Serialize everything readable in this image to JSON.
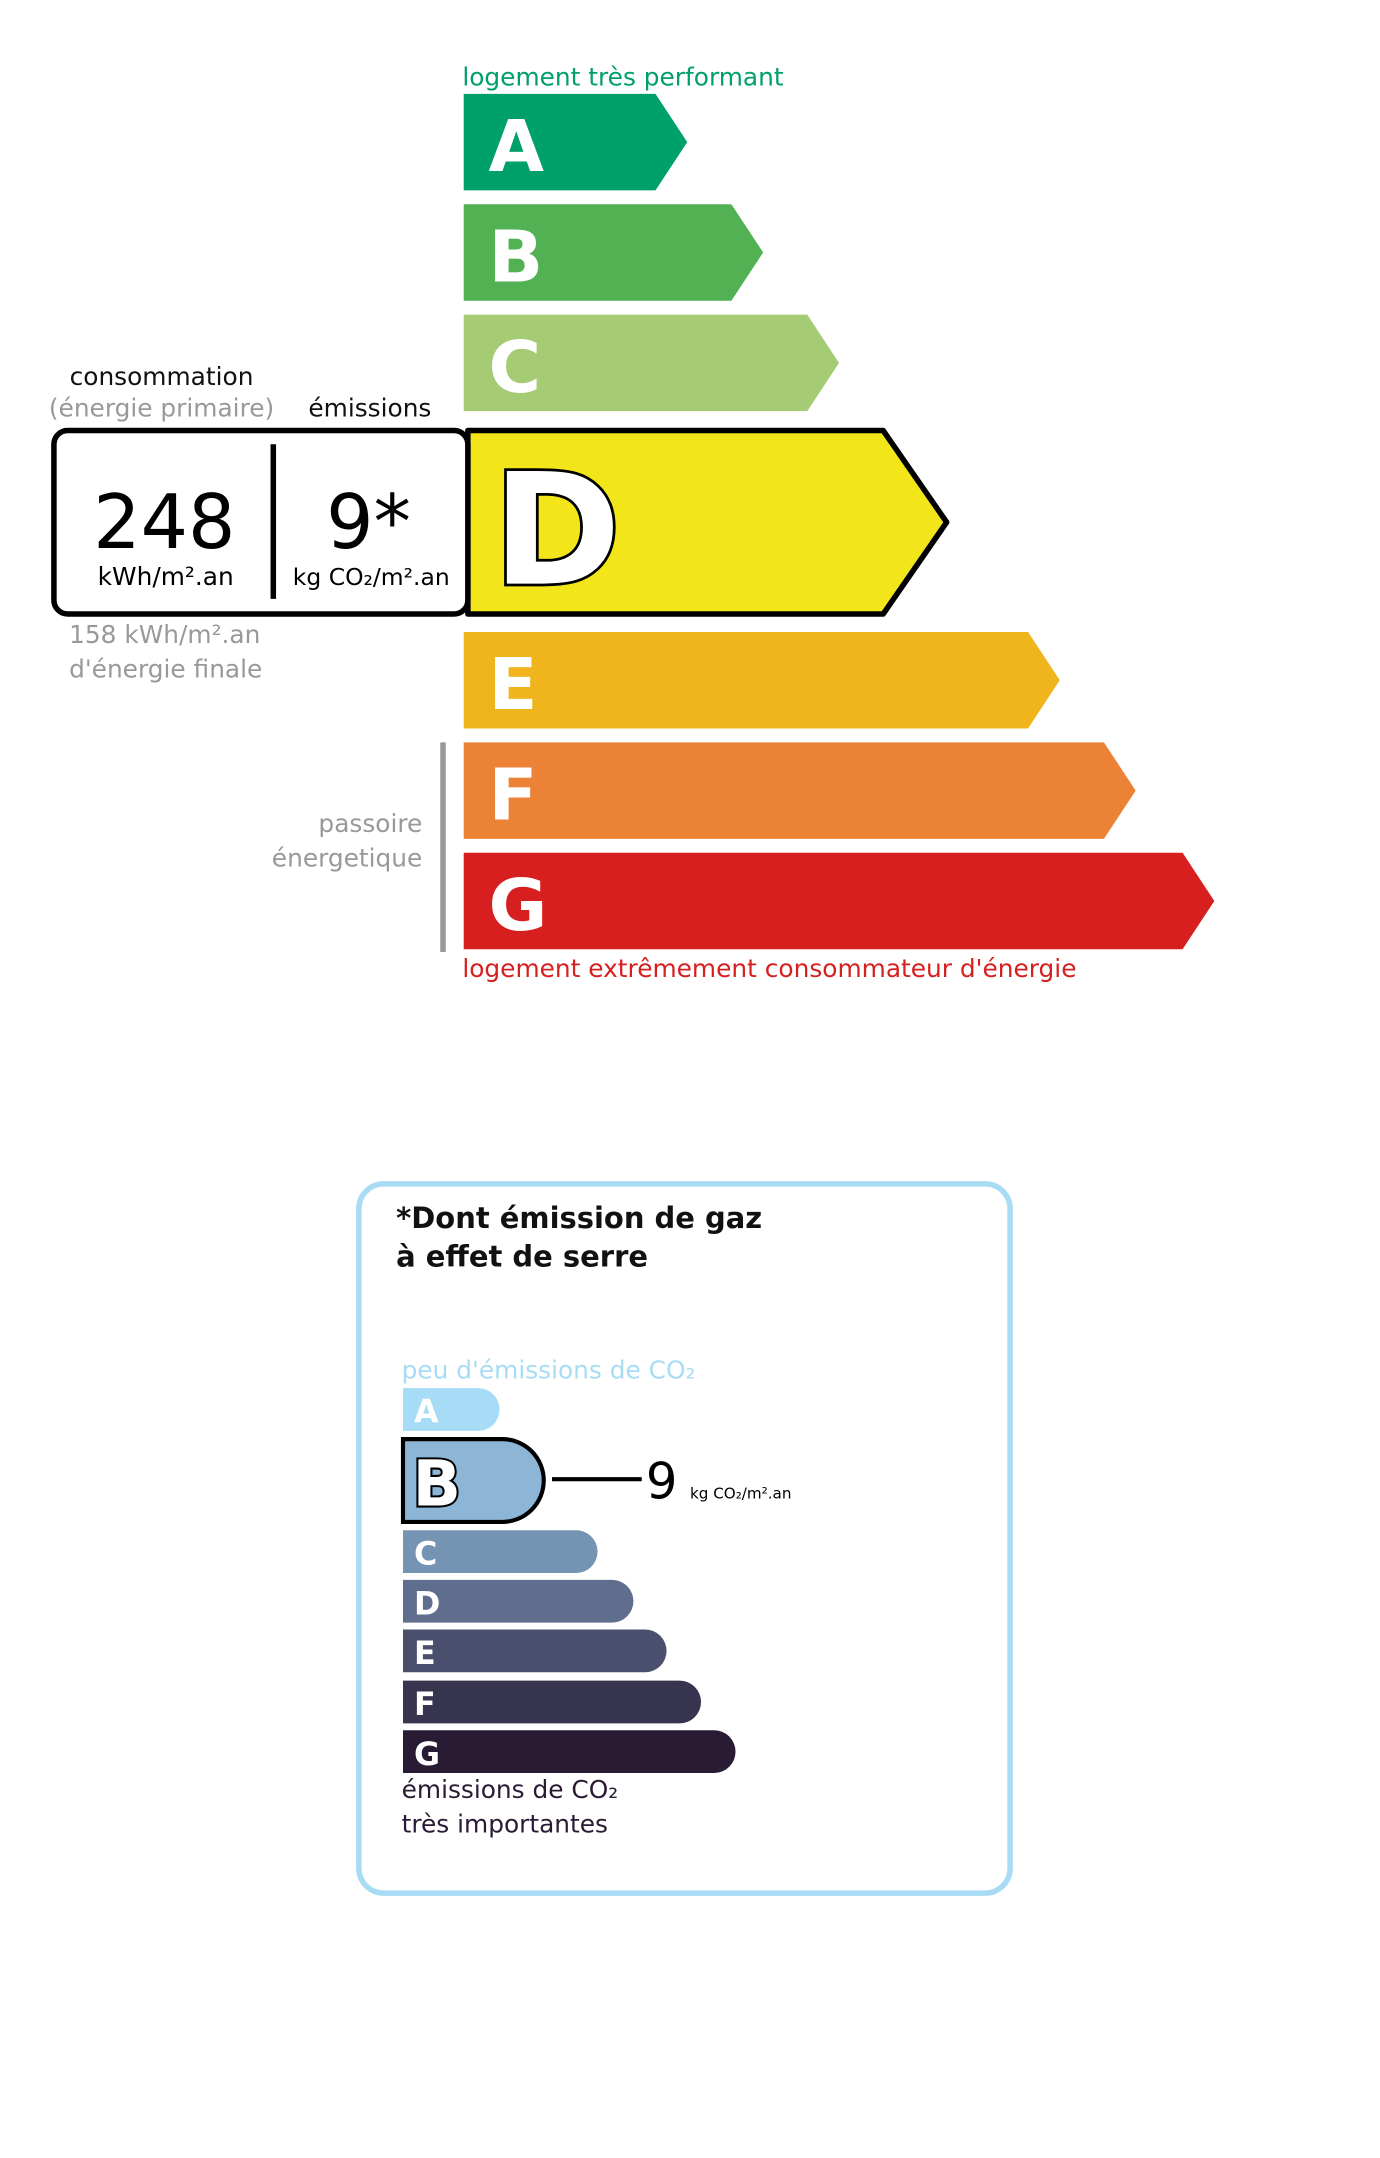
{
  "energy": {
    "top_label": "logement très performant",
    "bottom_label": "logement extrêmement consommateur d'énergie",
    "current_class": "D",
    "classes": [
      {
        "letter": "A",
        "color": "#00a06a"
      },
      {
        "letter": "B",
        "color": "#52b153"
      },
      {
        "letter": "C",
        "color": "#a5cc74"
      },
      {
        "letter": "D",
        "color": "#f2e51a"
      },
      {
        "letter": "E",
        "color": "#f0b41c"
      },
      {
        "letter": "F",
        "color": "#eb8235"
      },
      {
        "letter": "G",
        "color": "#d71f20"
      }
    ],
    "consumption_label": "consommation",
    "consumption_sub": "(énergie primaire)",
    "emissions_label": "émissions",
    "consumption_value": "248",
    "consumption_unit": "kWh/m².an",
    "emissions_value": "9*",
    "emissions_unit": "kg CO₂/m².an",
    "final_energy_value": "158 kWh/m².an",
    "final_energy_label": "d'énergie finale",
    "passoire_line1": "passoire",
    "passoire_line2": "énergetique"
  },
  "ges": {
    "title_line1": "*Dont émission de gaz",
    "title_line2": "à effet de serre",
    "top_label": "peu d'émissions de CO₂",
    "bottom_line1": "émissions de CO₂",
    "bottom_line2": "très importantes",
    "current_class": "B",
    "value": "9",
    "unit": "kg CO₂/m².an",
    "border_color": "#a8dcf5",
    "classes": [
      {
        "letter": "A",
        "color": "#a6dcf6"
      },
      {
        "letter": "B",
        "color": "#8db5d6"
      },
      {
        "letter": "C",
        "color": "#7593b3"
      },
      {
        "letter": "D",
        "color": "#5f6d8e"
      },
      {
        "letter": "E",
        "color": "#4b4f6e"
      },
      {
        "letter": "F",
        "color": "#37344f"
      },
      {
        "letter": "G",
        "color": "#2a1b35"
      }
    ]
  }
}
